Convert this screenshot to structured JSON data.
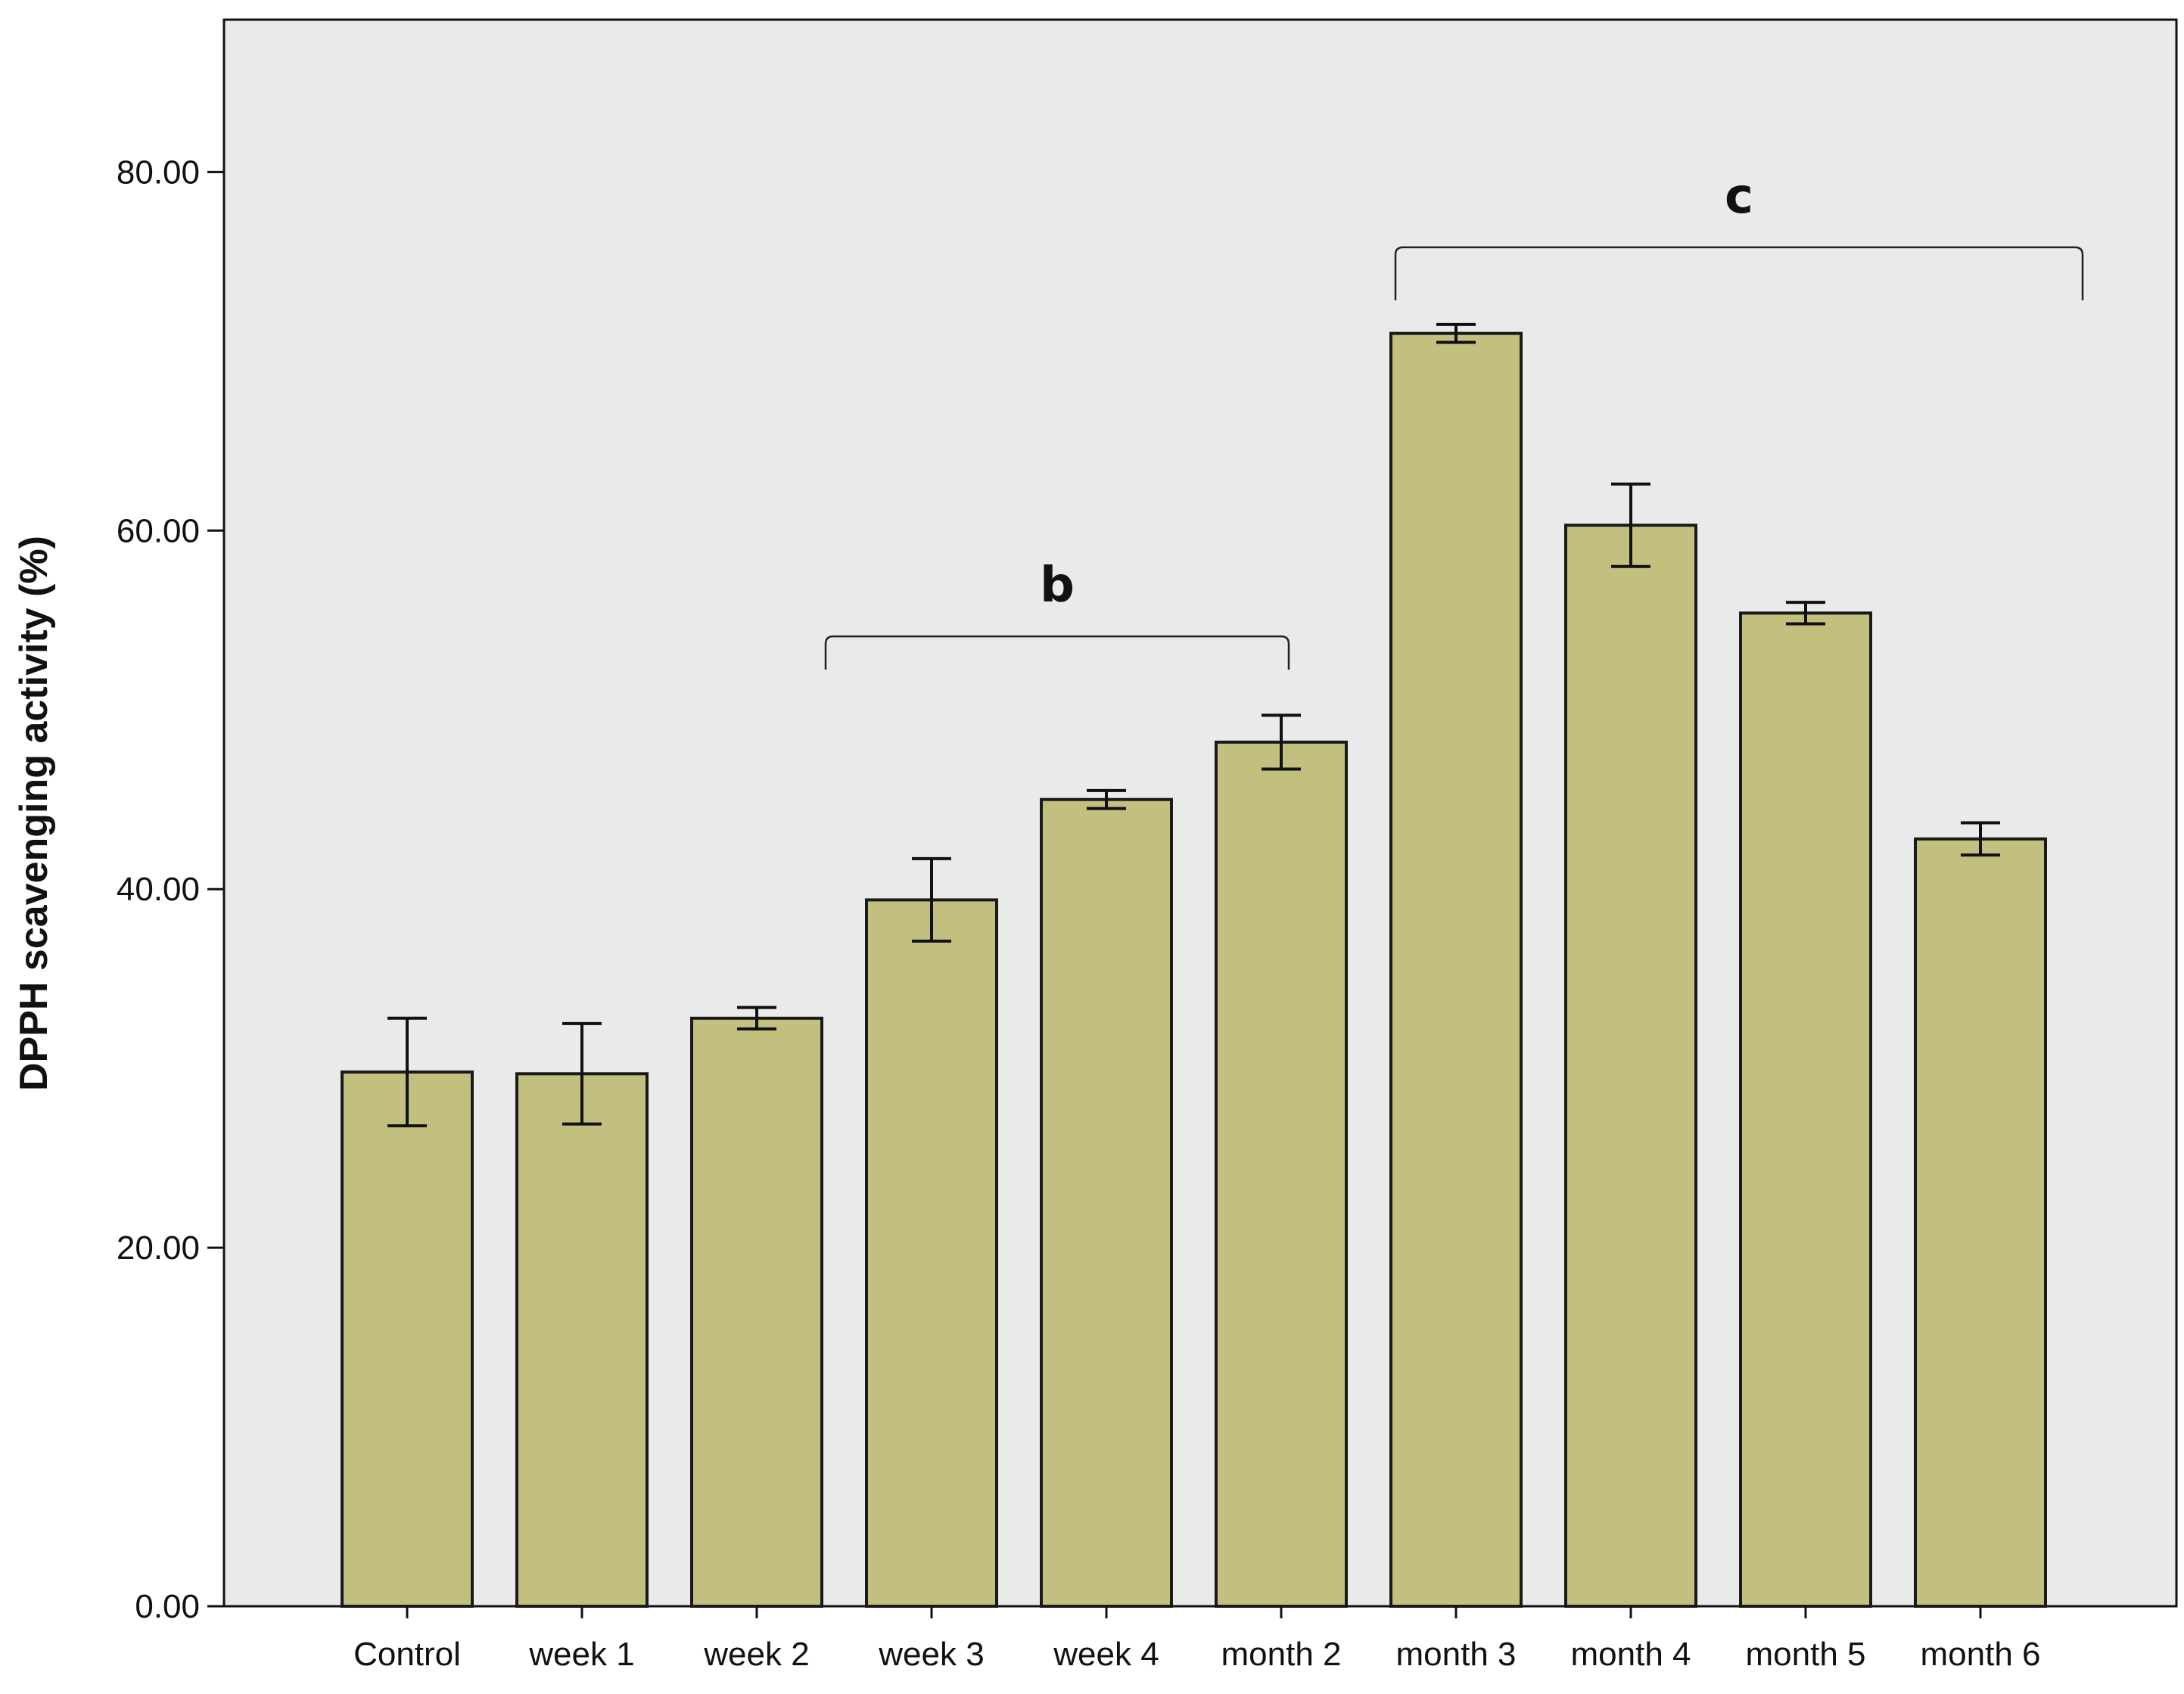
{
  "chart_data": {
    "type": "bar",
    "title": "",
    "xlabel": "",
    "ylabel": "DPPH scavenging activity (%)",
    "ylim": [
      0,
      88.5
    ],
    "yticks": [
      0,
      20,
      40,
      60,
      80
    ],
    "ytick_labels": [
      "0.00",
      "20.00",
      "40.00",
      "60.00",
      "80.00"
    ],
    "grid": false,
    "categories": [
      "Control",
      "week 1",
      "week 2",
      "week 3",
      "week 4",
      "month 2",
      "month 3",
      "month 4",
      "month 5",
      "month 6"
    ],
    "values": [
      29.8,
      29.7,
      32.8,
      39.4,
      45.0,
      48.2,
      71.0,
      60.3,
      55.4,
      42.8
    ],
    "errors": [
      3.0,
      2.8,
      0.6,
      2.3,
      0.5,
      1.5,
      0.5,
      2.3,
      0.6,
      0.9
    ],
    "annotations": [
      {
        "text": "b",
        "from": "week 3",
        "to": "month 2"
      },
      {
        "text": "c",
        "from": "month 3",
        "to": "month 6"
      }
    ],
    "colors": {
      "plot_background": "#e9eaea",
      "bar_fill": "#c3bf7f",
      "bar_stroke": "#1a1a1a",
      "axis": "#111111"
    }
  }
}
